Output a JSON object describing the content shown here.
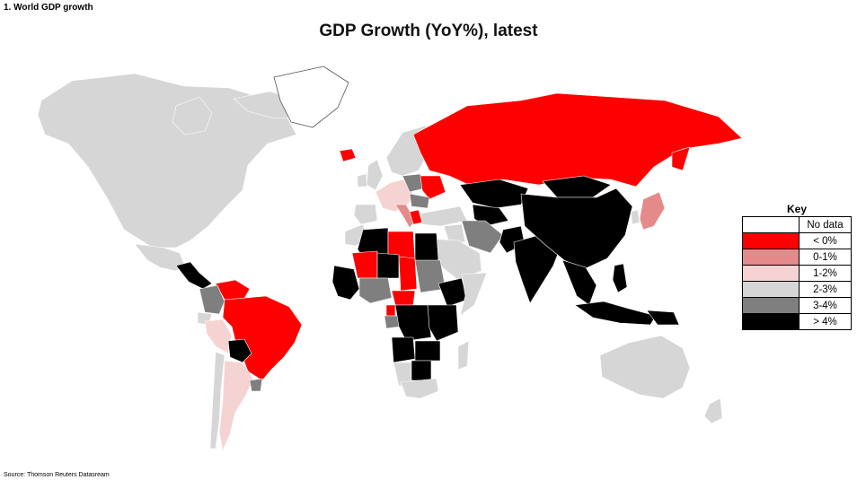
{
  "figure_label": "1. World GDP growth",
  "title": "GDP Growth (YoY%), latest",
  "source": "Source: Thomson Reuters Datasream",
  "legend": {
    "title": "Key",
    "items": [
      {
        "label": "No data",
        "color": "#ffffff"
      },
      {
        "label": "< 0%",
        "color": "#ff0000"
      },
      {
        "label": "0-1%",
        "color": "#e58a8a"
      },
      {
        "label": "1-2%",
        "color": "#f6d3d3"
      },
      {
        "label": "2-3%",
        "color": "#d6d6d6"
      },
      {
        "label": "3-4%",
        "color": "#7f7f7f"
      },
      {
        "label": "> 4%",
        "color": "#000000"
      }
    ]
  },
  "regions": [
    {
      "name": "North America",
      "category": "2-3%"
    },
    {
      "name": "Greenland",
      "category": "No data"
    },
    {
      "name": "Mexico",
      "category": "2-3%"
    },
    {
      "name": "Central America",
      "category": "> 4%"
    },
    {
      "name": "Venezuela",
      "category": "< 0%"
    },
    {
      "name": "Colombia",
      "category": "3-4%"
    },
    {
      "name": "Ecuador",
      "category": "2-3%"
    },
    {
      "name": "Peru",
      "category": "1-2%"
    },
    {
      "name": "Brazil",
      "category": "< 0%"
    },
    {
      "name": "Bolivia",
      "category": "> 4%"
    },
    {
      "name": "Argentina",
      "category": "1-2%"
    },
    {
      "name": "Chile",
      "category": "2-3%"
    },
    {
      "name": "Uruguay",
      "category": "3-4%"
    },
    {
      "name": "Iceland",
      "category": "< 0%"
    },
    {
      "name": "United Kingdom",
      "category": "2-3%"
    },
    {
      "name": "Ireland",
      "category": "2-3%"
    },
    {
      "name": "Scandinavia",
      "category": "2-3%"
    },
    {
      "name": "Western Europe",
      "category": "1-2%"
    },
    {
      "name": "Spain",
      "category": "2-3%"
    },
    {
      "name": "Italy",
      "category": "0-1%"
    },
    {
      "name": "Poland",
      "category": "3-4%"
    },
    {
      "name": "Ukraine",
      "category": "< 0%"
    },
    {
      "name": "Romania",
      "category": "3-4%"
    },
    {
      "name": "Greece",
      "category": "< 0%"
    },
    {
      "name": "Turkey",
      "category": "2-3%"
    },
    {
      "name": "Russia",
      "category": "< 0%"
    },
    {
      "name": "Kazakhstan",
      "category": "> 4%"
    },
    {
      "name": "Central Asia",
      "category": "> 4%"
    },
    {
      "name": "Iran",
      "category": "3-4%"
    },
    {
      "name": "Saudi Arabia",
      "category": "2-3%"
    },
    {
      "name": "Iraq",
      "category": "2-3%"
    },
    {
      "name": "China",
      "category": "> 4%"
    },
    {
      "name": "Mongolia",
      "category": "> 4%"
    },
    {
      "name": "India",
      "category": "> 4%"
    },
    {
      "name": "Pakistan",
      "category": "> 4%"
    },
    {
      "name": "Southeast Asia",
      "category": "> 4%"
    },
    {
      "name": "Japan",
      "category": "0-1%"
    },
    {
      "name": "South Korea",
      "category": "2-3%"
    },
    {
      "name": "Indonesia",
      "category": "> 4%"
    },
    {
      "name": "Philippines",
      "category": "> 4%"
    },
    {
      "name": "Papua New Guinea",
      "category": "> 4%"
    },
    {
      "name": "Australia",
      "category": "2-3%"
    },
    {
      "name": "New Zealand",
      "category": "2-3%"
    },
    {
      "name": "Morocco",
      "category": "2-3%"
    },
    {
      "name": "Algeria",
      "category": "> 4%"
    },
    {
      "name": "Libya",
      "category": "< 0%"
    },
    {
      "name": "Egypt",
      "category": "> 4%"
    },
    {
      "name": "Sudan",
      "category": "3-4%"
    },
    {
      "name": "Chad",
      "category": "< 0%"
    },
    {
      "name": "Niger",
      "category": "> 4%"
    },
    {
      "name": "Mali",
      "category": "< 0%"
    },
    {
      "name": "Nigeria",
      "category": "3-4%"
    },
    {
      "name": "West Africa",
      "category": "> 4%"
    },
    {
      "name": "Central African Republic",
      "category": "< 0%"
    },
    {
      "name": "Ethiopia",
      "category": "> 4%"
    },
    {
      "name": "Somalia",
      "category": "2-3%"
    },
    {
      "name": "Equatorial Guinea",
      "category": "< 0%"
    },
    {
      "name": "Gabon",
      "category": "3-4%"
    },
    {
      "name": "Congo",
      "category": "> 4%"
    },
    {
      "name": "East Africa",
      "category": "> 4%"
    },
    {
      "name": "Angola",
      "category": "> 4%"
    },
    {
      "name": "Zambia",
      "category": "> 4%"
    },
    {
      "name": "Botswana",
      "category": "> 4%"
    },
    {
      "name": "Namibia",
      "category": "2-3%"
    },
    {
      "name": "South Africa",
      "category": "2-3%"
    },
    {
      "name": "Madagascar",
      "category": "2-3%"
    }
  ]
}
